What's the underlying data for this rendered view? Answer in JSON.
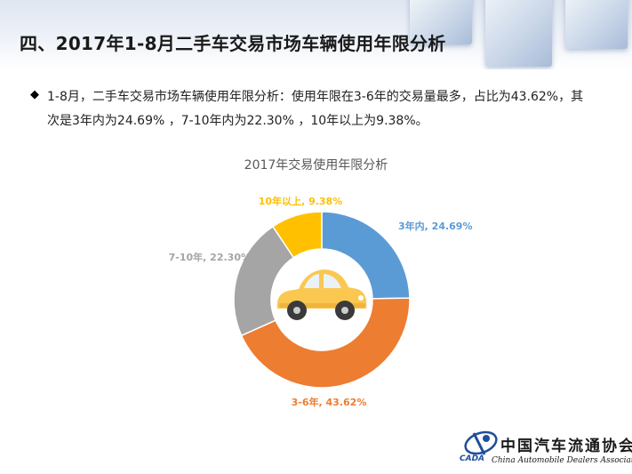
{
  "page": {
    "title": "四、2017年1-8月二手车交易市场车辆使用年限分析",
    "bullet": "◆",
    "summary": "1-8月，二手车交易市场车辆使用年限分析：使用年限在3-6年的交易量最多，占比为43.62%，其次是3年内为24.69% ，7-10年内为22.30% ，10年以上为9.38%。"
  },
  "chart_data": {
    "type": "pie",
    "donut": true,
    "title": "2017年交易使用年限分析",
    "start_angle_deg": 0,
    "direction": "clockwise",
    "center_icon": "car-icon",
    "slices": [
      {
        "label": "3年内",
        "value": 24.69,
        "display": "3年内, 24.69%",
        "color": "#5B9BD5"
      },
      {
        "label": "3-6年",
        "value": 43.62,
        "display": "3-6年, 43.62%",
        "color": "#ED7D31"
      },
      {
        "label": "7-10年",
        "value": 22.3,
        "display": "7-10年, 22.30%",
        "color": "#A5A5A5"
      },
      {
        "label": "10年以上",
        "value": 9.38,
        "display": "10年以上, 9.38%",
        "color": "#FFC000"
      }
    ]
  },
  "logo": {
    "cn_name": "中国汽车流通协会",
    "en_name": "China Automobile Dealers Association",
    "abbr": "CADA",
    "color": "#1f4e9c"
  }
}
